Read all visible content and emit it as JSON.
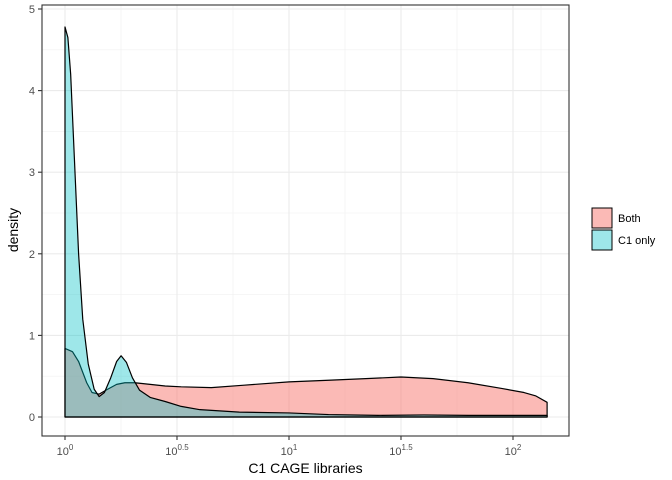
{
  "chart_data": {
    "type": "area",
    "xlabel": "C1 CAGE libraries",
    "ylabel": "density",
    "x_scale": "log10",
    "xlim": [
      1,
      142
    ],
    "ylim": [
      -0.25,
      5
    ],
    "x_ticks": [
      {
        "base": "10",
        "exp": "0",
        "value": 1
      },
      {
        "base": "10",
        "exp": "0.5",
        "value": 3.162
      },
      {
        "base": "10",
        "exp": "1",
        "value": 10
      },
      {
        "base": "10",
        "exp": "1.5",
        "value": 31.62
      },
      {
        "base": "10",
        "exp": "2",
        "value": 100
      }
    ],
    "y_ticks": [
      {
        "label": "0",
        "value": 0
      },
      {
        "label": "1",
        "value": 1
      },
      {
        "label": "2",
        "value": 2
      },
      {
        "label": "3",
        "value": 3
      },
      {
        "label": "4",
        "value": 4
      },
      {
        "label": "5",
        "value": 5
      }
    ],
    "grid": true,
    "legend_position": "right",
    "series": [
      {
        "name": "Both",
        "color": "#F8766D",
        "points": [
          [
            1,
            0.84
          ],
          [
            1.08,
            0.8
          ],
          [
            1.15,
            0.68
          ],
          [
            1.25,
            0.42
          ],
          [
            1.32,
            0.3
          ],
          [
            1.42,
            0.28
          ],
          [
            1.55,
            0.34
          ],
          [
            1.7,
            0.4
          ],
          [
            1.85,
            0.42
          ],
          [
            2.05,
            0.42
          ],
          [
            2.4,
            0.4
          ],
          [
            2.8,
            0.38
          ],
          [
            3.3,
            0.37
          ],
          [
            4.5,
            0.36
          ],
          [
            6.3,
            0.39
          ],
          [
            10,
            0.43
          ],
          [
            15,
            0.45
          ],
          [
            22,
            0.47
          ],
          [
            31.6,
            0.49
          ],
          [
            44,
            0.47
          ],
          [
            63,
            0.42
          ],
          [
            89,
            0.35
          ],
          [
            112,
            0.3
          ],
          [
            126,
            0.26
          ],
          [
            142,
            0.18
          ]
        ]
      },
      {
        "name": "C1 only",
        "color": "#00BFC4",
        "points": [
          [
            1,
            4.78
          ],
          [
            1.03,
            4.65
          ],
          [
            1.06,
            4.2
          ],
          [
            1.1,
            3.2
          ],
          [
            1.15,
            2.0
          ],
          [
            1.2,
            1.2
          ],
          [
            1.27,
            0.65
          ],
          [
            1.35,
            0.34
          ],
          [
            1.42,
            0.25
          ],
          [
            1.5,
            0.3
          ],
          [
            1.6,
            0.48
          ],
          [
            1.7,
            0.68
          ],
          [
            1.78,
            0.75
          ],
          [
            1.88,
            0.67
          ],
          [
            2.0,
            0.48
          ],
          [
            2.15,
            0.33
          ],
          [
            2.4,
            0.24
          ],
          [
            2.8,
            0.19
          ],
          [
            3.3,
            0.13
          ],
          [
            4.0,
            0.09
          ],
          [
            6.0,
            0.06
          ],
          [
            10,
            0.05
          ],
          [
            15,
            0.03
          ],
          [
            25,
            0.02
          ],
          [
            40,
            0.025
          ],
          [
            63,
            0.02
          ],
          [
            100,
            0.02
          ],
          [
            142,
            0.02
          ]
        ]
      }
    ]
  }
}
